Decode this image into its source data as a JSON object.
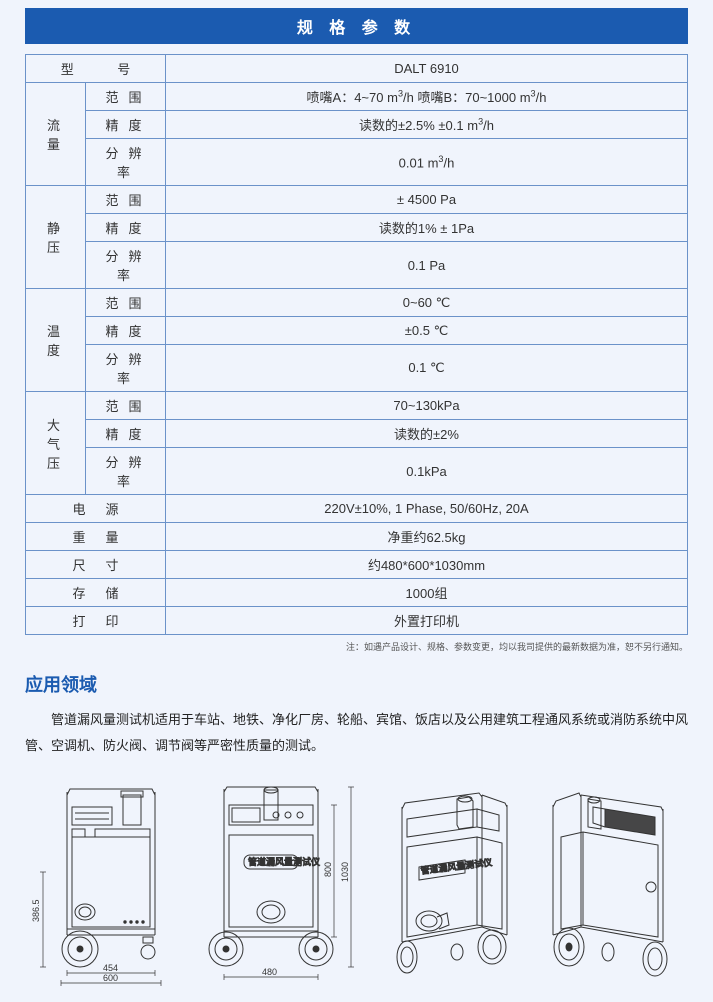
{
  "header": "规 格 参 数",
  "model_label": "型  号",
  "model_value": "DALT 6910",
  "groups": [
    {
      "label": "流量",
      "rows": [
        {
          "sub": "范围",
          "val": "喷嘴A：4~70 m³/h      喷嘴B：70~1000 m³/h"
        },
        {
          "sub": "精度",
          "val": "读数的±2.5%  ±0.1 m³/h"
        },
        {
          "sub": "分辨率",
          "val": "0.01 m³/h"
        }
      ]
    },
    {
      "label": "静压",
      "rows": [
        {
          "sub": "范围",
          "val": "± 4500 Pa"
        },
        {
          "sub": "精度",
          "val": "读数的1% ± 1Pa"
        },
        {
          "sub": "分辨率",
          "val": "0.1 Pa"
        }
      ]
    },
    {
      "label": "温度",
      "rows": [
        {
          "sub": "范围",
          "val": "0~60 ℃"
        },
        {
          "sub": "精度",
          "val": "±0.5 ℃"
        },
        {
          "sub": "分辨率",
          "val": "0.1 ℃"
        }
      ]
    },
    {
      "label": "大气压",
      "rows": [
        {
          "sub": "范围",
          "val": "70~130kPa"
        },
        {
          "sub": "精度",
          "val": "读数的±2%"
        },
        {
          "sub": "分辨率",
          "val": "0.1kPa"
        }
      ]
    }
  ],
  "simple_rows": [
    {
      "label": "电源",
      "val": "220V±10%, 1 Phase, 50/60Hz, 20A"
    },
    {
      "label": "重量",
      "val": "净重约62.5kg"
    },
    {
      "label": "尺寸",
      "val": "约480*600*1030mm"
    },
    {
      "label": "存储",
      "val": "1000组"
    },
    {
      "label": "打印",
      "val": "外置打印机"
    }
  ],
  "note": "注：如遇产品设计、规格、参数变更，均以我司提供的最新数据为准，恕不另行通知。",
  "section_title": "应用领域",
  "app_text": "管道漏风量测试机适用于车站、地铁、净化厂房、轮船、宾馆、饭店以及公用建筑工程通风系统或消防系统中风管、空调机、防火阀、调节阀等严密性质量的测试。",
  "dims": {
    "d1_w_inner": "454",
    "d1_w_outer": "600",
    "d1_h": "386.5",
    "d2_w": "480",
    "d2_h_inner": "800",
    "d2_h_outer": "1030"
  },
  "colors": {
    "bg": "#f0f4fc",
    "header": "#1b5bb0",
    "border": "#6b92c9",
    "title": "#1b5bb0"
  }
}
